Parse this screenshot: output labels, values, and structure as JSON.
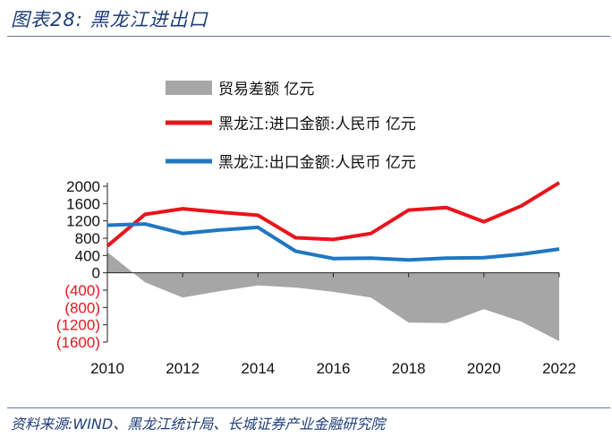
{
  "header": {
    "title": "图表28:  黑龙江进出口"
  },
  "footer": {
    "source": "资料来源:WIND、黑龙江统计局、长城证券产业金融研究院"
  },
  "colors": {
    "balance": "#a6a6a6",
    "import": "#e8141c",
    "export": "#1f77c3",
    "negative_tick": "#e8141c",
    "rule": "#5a78b0",
    "title": "#1f3d7a"
  },
  "chart_data": {
    "type": "line",
    "title": "黑龙江进出口",
    "xlabel": "",
    "ylabel": "",
    "x": [
      2010,
      2011,
      2012,
      2013,
      2014,
      2015,
      2016,
      2017,
      2018,
      2019,
      2020,
      2021,
      2022
    ],
    "series": [
      {
        "name": "贸易差额 亿元",
        "kind": "area",
        "values": [
          480,
          -220,
          -570,
          -420,
          -290,
          -340,
          -440,
          -570,
          -1150,
          -1160,
          -840,
          -1130,
          -1580
        ]
      },
      {
        "name": "黑龙江:进口金额:人民币 亿元",
        "kind": "line",
        "values": [
          620,
          1350,
          1480,
          1400,
          1330,
          810,
          770,
          910,
          1450,
          1510,
          1180,
          1550,
          2080
        ]
      },
      {
        "name": "黑龙江:出口金额:人民币 亿元",
        "kind": "line",
        "values": [
          1100,
          1130,
          910,
          990,
          1050,
          500,
          330,
          340,
          300,
          340,
          350,
          430,
          550
        ]
      }
    ],
    "xticks": [
      2010,
      2012,
      2014,
      2016,
      2018,
      2020,
      2022
    ],
    "xtick_labels": [
      "2010",
      "2012",
      "2014",
      "2016",
      "2018",
      "2020",
      "2022"
    ],
    "yticks": [
      2000,
      1600,
      1200,
      800,
      400,
      0,
      -400,
      -800,
      -1200,
      -1600
    ],
    "ytick_labels": [
      "2000",
      "1600",
      "1200",
      "800",
      "400",
      "0",
      "(400)",
      "(800)",
      "(1200)",
      "(1600)"
    ],
    "ylim": [
      -1600,
      2000
    ],
    "xlim": [
      2010,
      2022
    ],
    "grid": false,
    "legend": "top"
  }
}
